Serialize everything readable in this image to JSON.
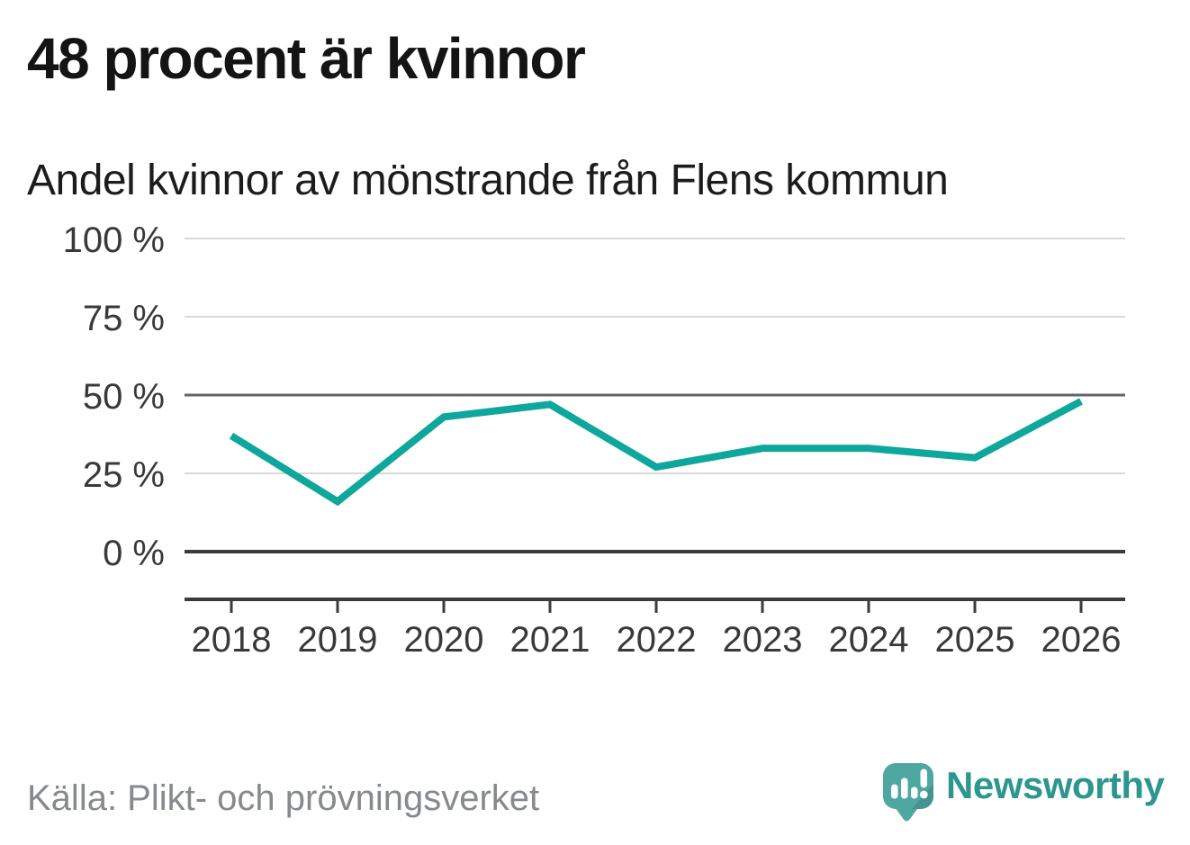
{
  "header": {
    "title": "48 procent är kvinnor",
    "subtitle": "Andel kvinnor av mönstrande från Flens kommun"
  },
  "footer": {
    "source": "Källa: Plikt- och prövningsverket",
    "brand": "Newsworthy"
  },
  "colors": {
    "line": "#0ea79b",
    "brand_teal": "#2d968e",
    "logo_bubble": "#4fa7a1",
    "logo_bubble_shade": "#459390",
    "title_text": "#141414",
    "axis_text": "#39393c",
    "muted_text": "#86898d",
    "grid_light": "#d9d9d9",
    "grid_reference": "#64646c",
    "axis_dark": "#3b3b3b"
  },
  "chart_data": {
    "type": "line",
    "title": "48 procent är kvinnor",
    "subtitle": "Andel kvinnor av mönstrande från Flens kommun",
    "categories": [
      "2018",
      "2019",
      "2020",
      "2021",
      "2022",
      "2023",
      "2024",
      "2025",
      "2026"
    ],
    "series": [
      {
        "name": "Andel kvinnor av mönstrande",
        "values": [
          37,
          16,
          43,
          47,
          27,
          33,
          33,
          30,
          48
        ]
      }
    ],
    "unit": "%",
    "ylim": [
      0,
      100
    ],
    "yticks": [
      0,
      25,
      50,
      75,
      100
    ],
    "y_tick_labels": [
      "0 %",
      "25 %",
      "50 %",
      "75 %",
      "100 %"
    ],
    "grid": "horizontal",
    "reference_lines": [
      50
    ],
    "legend": "none",
    "source": "Källa: Plikt- och prövningsverket"
  }
}
